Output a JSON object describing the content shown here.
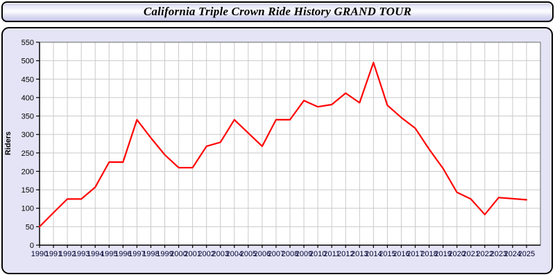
{
  "header": {
    "title": "California Triple Crown Ride History GRAND TOUR"
  },
  "chart": {
    "ylabel": "Riders"
  },
  "chart_data": {
    "type": "line",
    "title": "California Triple Crown Ride History GRAND TOUR",
    "xlabel": "",
    "ylabel": "Riders",
    "x": [
      1990,
      1991,
      1992,
      1993,
      1994,
      1995,
      1996,
      1997,
      1998,
      1999,
      2000,
      2001,
      2002,
      2003,
      2004,
      2005,
      2006,
      2007,
      2008,
      2009,
      2010,
      2011,
      2012,
      2013,
      2014,
      2015,
      2016,
      2017,
      2018,
      2019,
      2020,
      2021,
      2022,
      2023,
      2024,
      2025
    ],
    "series": [
      {
        "name": "Riders",
        "color": "#ff0000",
        "values": [
          50,
          88,
          125,
          125,
          157,
          225,
          225,
          340,
          291,
          245,
          210,
          210,
          268,
          279,
          340,
          304,
          268,
          340,
          340,
          392,
          375,
          381,
          412,
          386,
          495,
          379,
          346,
          317,
          260,
          208,
          143,
          125,
          83,
          129,
          126,
          123
        ]
      }
    ],
    "ylim": [
      0,
      550
    ],
    "ytick_step": 50,
    "xlim": [
      1990,
      2026
    ],
    "grid": true,
    "legend_position": "none",
    "plot_bg": "#ffffff",
    "panel_bg": "#e4e4f6",
    "grid_color": "#c9c9c9",
    "plot_border_color": "#666666",
    "axis_color": "#000000",
    "ytick_color": "#000000",
    "xtick_color": "#000033"
  }
}
